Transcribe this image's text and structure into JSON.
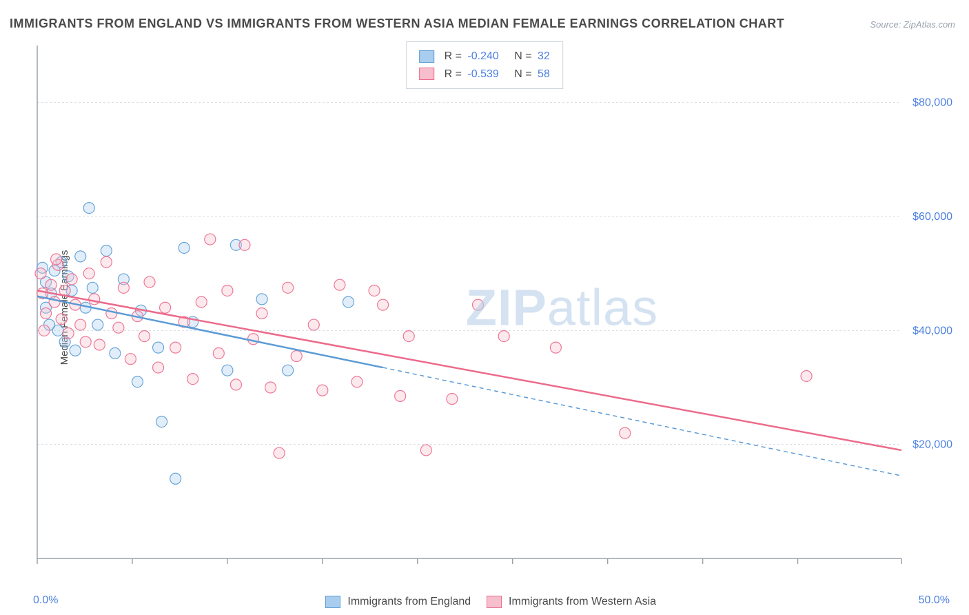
{
  "title": "IMMIGRANTS FROM ENGLAND VS IMMIGRANTS FROM WESTERN ASIA MEDIAN FEMALE EARNINGS CORRELATION CHART",
  "source": "Source: ZipAtlas.com",
  "y_axis_label": "Median Female Earnings",
  "watermark_bold": "ZIP",
  "watermark_rest": "atlas",
  "chart": {
    "type": "scatter",
    "xlim": [
      0,
      50
    ],
    "ylim": [
      0,
      90000
    ],
    "x_tick_positions": [
      0,
      5.5,
      11,
      16.5,
      22,
      27.5,
      33,
      38.5,
      44,
      50
    ],
    "x_label_min": "0.0%",
    "x_label_max": "50.0%",
    "y_grid_values": [
      0,
      20000,
      40000,
      60000,
      80000
    ],
    "y_tick_labels": [
      "",
      "$20,000",
      "$40,000",
      "$60,000",
      "$80,000"
    ],
    "grid_color": "#d6dde4",
    "grid_dash": "3,3",
    "axis_color": "#9aa3ad",
    "background_color": "#ffffff",
    "title_fontsize": 18,
    "label_fontsize": 15,
    "tick_fontsize": 16,
    "point_radius": 8,
    "point_fill_opacity": 0.35,
    "point_stroke_opacity": 0.9,
    "line_width": 2.5
  },
  "series": [
    {
      "id": "england",
      "name": "Immigrants from England",
      "color": "#5b9bd5",
      "fill": "#a9cdee",
      "stroke": "#5b9bd5",
      "R": "-0.240",
      "N": "32",
      "trend": {
        "x1": 0,
        "y1": 46000,
        "x2_solid": 20,
        "y2_solid": 33500,
        "x2": 50,
        "y2": 14500
      },
      "points": [
        [
          0.3,
          51000
        ],
        [
          0.5,
          44000
        ],
        [
          0.5,
          48500
        ],
        [
          0.7,
          41000
        ],
        [
          0.8,
          46500
        ],
        [
          1.0,
          50500
        ],
        [
          1.2,
          40000
        ],
        [
          1.4,
          52000
        ],
        [
          1.6,
          38000
        ],
        [
          1.8,
          49500
        ],
        [
          2.0,
          47000
        ],
        [
          2.2,
          36500
        ],
        [
          2.5,
          53000
        ],
        [
          2.8,
          44000
        ],
        [
          3.0,
          61500
        ],
        [
          3.2,
          47500
        ],
        [
          3.5,
          41000
        ],
        [
          4.0,
          54000
        ],
        [
          4.5,
          36000
        ],
        [
          5.0,
          49000
        ],
        [
          5.8,
          31000
        ],
        [
          6.0,
          43500
        ],
        [
          7.0,
          37000
        ],
        [
          7.2,
          24000
        ],
        [
          8.0,
          14000
        ],
        [
          8.5,
          54500
        ],
        [
          9.0,
          41500
        ],
        [
          11.0,
          33000
        ],
        [
          11.5,
          55000
        ],
        [
          13.0,
          45500
        ],
        [
          14.5,
          33000
        ],
        [
          18.0,
          45000
        ]
      ]
    },
    {
      "id": "western_asia",
      "name": "Immigrants from Western Asia",
      "color": "#ec6a8b",
      "fill": "#f7bfcd",
      "stroke": "#ec6a8b",
      "R": "-0.539",
      "N": "58",
      "trend": {
        "x1": 0,
        "y1": 47000,
        "x2_solid": 50,
        "y2_solid": 19000,
        "x2": 50,
        "y2": 19000
      },
      "points": [
        [
          0.2,
          50000
        ],
        [
          0.3,
          46500
        ],
        [
          0.5,
          43000
        ],
        [
          0.8,
          48000
        ],
        [
          1.0,
          45000
        ],
        [
          1.2,
          51500
        ],
        [
          1.4,
          42000
        ],
        [
          1.6,
          47000
        ],
        [
          1.8,
          39500
        ],
        [
          2.0,
          49000
        ],
        [
          2.2,
          44500
        ],
        [
          2.5,
          41000
        ],
        [
          2.8,
          38000
        ],
        [
          3.0,
          50000
        ],
        [
          3.3,
          45500
        ],
        [
          3.6,
          37500
        ],
        [
          4.0,
          52000
        ],
        [
          4.3,
          43000
        ],
        [
          4.7,
          40500
        ],
        [
          5.0,
          47500
        ],
        [
          5.4,
          35000
        ],
        [
          5.8,
          42500
        ],
        [
          6.2,
          39000
        ],
        [
          6.5,
          48500
        ],
        [
          7.0,
          33500
        ],
        [
          7.4,
          44000
        ],
        [
          8.0,
          37000
        ],
        [
          8.5,
          41500
        ],
        [
          9.0,
          31500
        ],
        [
          9.5,
          45000
        ],
        [
          10.0,
          56000
        ],
        [
          10.5,
          36000
        ],
        [
          11.0,
          47000
        ],
        [
          11.5,
          30500
        ],
        [
          12.0,
          55000
        ],
        [
          12.5,
          38500
        ],
        [
          13.0,
          43000
        ],
        [
          13.5,
          30000
        ],
        [
          14.0,
          18500
        ],
        [
          14.5,
          47500
        ],
        [
          15.0,
          35500
        ],
        [
          16.0,
          41000
        ],
        [
          16.5,
          29500
        ],
        [
          17.5,
          48000
        ],
        [
          18.5,
          31000
        ],
        [
          19.5,
          47000
        ],
        [
          20.0,
          44500
        ],
        [
          21.0,
          28500
        ],
        [
          21.5,
          39000
        ],
        [
          22.5,
          19000
        ],
        [
          24.0,
          28000
        ],
        [
          25.5,
          44500
        ],
        [
          27.0,
          39000
        ],
        [
          30.0,
          37000
        ],
        [
          34.0,
          22000
        ],
        [
          44.5,
          32000
        ],
        [
          0.4,
          40000
        ],
        [
          1.1,
          52500
        ]
      ]
    }
  ],
  "legend_bottom": {
    "items": [
      {
        "label": "Immigrants from England",
        "fill": "#a9cdee",
        "stroke": "#5b9bd5"
      },
      {
        "label": "Immigrants from Western Asia",
        "fill": "#f7bfcd",
        "stroke": "#ec6a8b"
      }
    ]
  }
}
